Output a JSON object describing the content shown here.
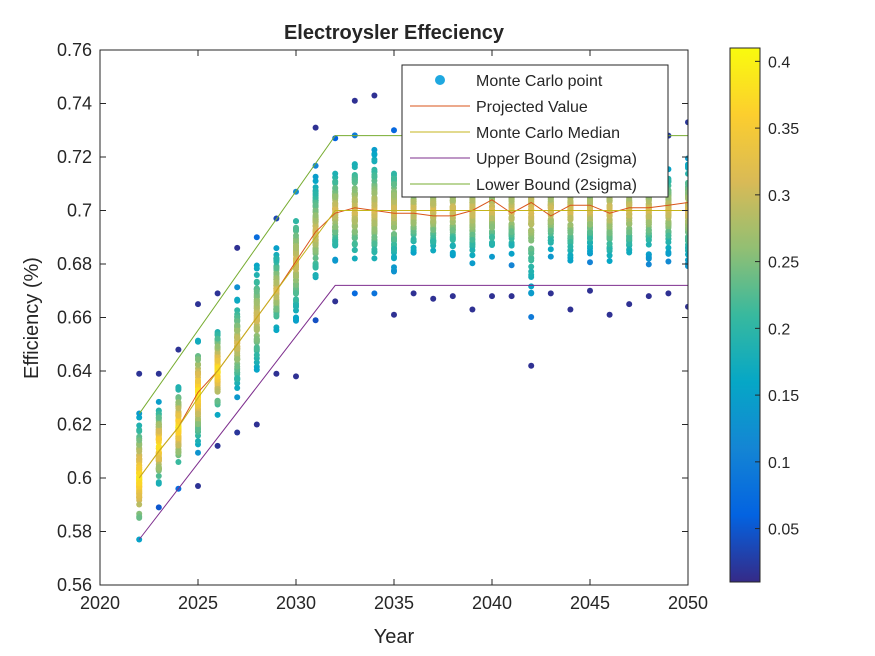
{
  "chart_data": {
    "type": "scatter",
    "title": "Electroysler Effeciency",
    "xlabel": "Year",
    "ylabel": "Efficiency (%)",
    "xlim": [
      2020,
      2050
    ],
    "ylim": [
      0.56,
      0.76
    ],
    "xticks": [
      "2020",
      "2025",
      "2030",
      "2035",
      "2040",
      "2045",
      "2050"
    ],
    "yticks": [
      "0.56",
      "0.58",
      "0.6",
      "0.62",
      "0.64",
      "0.66",
      "0.68",
      "0.7",
      "0.72",
      "0.74",
      "0.76"
    ],
    "grid": false,
    "legend_position": "top-right",
    "colormap": "parula",
    "colorbar": {
      "range": [
        0.01,
        0.41
      ],
      "ticks": [
        "0.05",
        "0.1",
        "0.15",
        "0.2",
        "0.25",
        "0.3",
        "0.35",
        "0.4"
      ]
    },
    "scatter_series": {
      "name": "Monte Carlo point",
      "color_hex": "#1fa8e0",
      "years": [
        2022,
        2023,
        2024,
        2025,
        2026,
        2027,
        2028,
        2029,
        2030,
        2031,
        2032,
        2033,
        2034,
        2035,
        2036,
        2037,
        2038,
        2039,
        2040,
        2041,
        2042,
        2043,
        2044,
        2045,
        2046,
        2047,
        2048,
        2049,
        2050
      ],
      "centers": [
        0.6,
        0.612,
        0.619,
        0.632,
        0.64,
        0.65,
        0.66,
        0.67,
        0.681,
        0.692,
        0.7,
        0.7,
        0.7,
        0.7,
        0.7,
        0.7,
        0.7,
        0.7,
        0.7,
        0.7,
        0.7,
        0.7,
        0.7,
        0.7,
        0.7,
        0.7,
        0.7,
        0.7,
        0.7
      ],
      "mins": [
        0.577,
        0.589,
        0.596,
        0.597,
        0.612,
        0.617,
        0.62,
        0.639,
        0.638,
        0.659,
        0.666,
        0.669,
        0.669,
        0.661,
        0.669,
        0.667,
        0.668,
        0.663,
        0.668,
        0.668,
        0.642,
        0.669,
        0.663,
        0.67,
        0.661,
        0.665,
        0.668,
        0.669,
        0.664
      ],
      "maxs": [
        0.639,
        0.639,
        0.648,
        0.665,
        0.669,
        0.686,
        0.69,
        0.697,
        0.707,
        0.731,
        0.727,
        0.741,
        0.743,
        0.73,
        0.731,
        0.727,
        0.728,
        0.728,
        0.728,
        0.731,
        0.727,
        0.728,
        0.728,
        0.728,
        0.728,
        0.73,
        0.728,
        0.728,
        0.733
      ]
    },
    "series": [
      {
        "name": "Projected Value",
        "color": "#d95319",
        "x": [
          2022,
          2023,
          2024,
          2025,
          2026,
          2027,
          2028,
          2029,
          2030,
          2031,
          2032,
          2033,
          2034,
          2035,
          2036,
          2037,
          2038,
          2039,
          2040,
          2041,
          2042,
          2043,
          2044,
          2045,
          2046,
          2047,
          2048,
          2049,
          2050
        ],
        "y": [
          0.6,
          0.61,
          0.619,
          0.632,
          0.64,
          0.65,
          0.66,
          0.67,
          0.681,
          0.692,
          0.699,
          0.701,
          0.7,
          0.699,
          0.699,
          0.698,
          0.698,
          0.7,
          0.704,
          0.699,
          0.703,
          0.698,
          0.702,
          0.702,
          0.699,
          0.701,
          0.701,
          0.702,
          0.703
        ]
      },
      {
        "name": "Monte Carlo Median",
        "color": "#c5b41c",
        "x": [
          2022,
          2023,
          2024,
          2025,
          2026,
          2027,
          2028,
          2029,
          2030,
          2031,
          2032,
          2033,
          2034,
          2035,
          2036,
          2037,
          2038,
          2039,
          2040,
          2041,
          2042,
          2043,
          2044,
          2045,
          2046,
          2047,
          2048,
          2049,
          2050
        ],
        "y": [
          0.6,
          0.61,
          0.619,
          0.63,
          0.64,
          0.65,
          0.66,
          0.67,
          0.68,
          0.69,
          0.7,
          0.7,
          0.7,
          0.7,
          0.7,
          0.7,
          0.7,
          0.7,
          0.7,
          0.7,
          0.7,
          0.7,
          0.7,
          0.7,
          0.7,
          0.7,
          0.7,
          0.7,
          0.7
        ]
      },
      {
        "name": "Upper Bound (2sigma)",
        "color": "#7e2f8e",
        "x": [
          2022,
          2032,
          2050
        ],
        "y": [
          0.577,
          0.672,
          0.672
        ]
      },
      {
        "name": "Lower Bound (2sigma)",
        "color": "#77ac30",
        "x": [
          2022,
          2032,
          2050
        ],
        "y": [
          0.624,
          0.728,
          0.728
        ]
      }
    ]
  }
}
